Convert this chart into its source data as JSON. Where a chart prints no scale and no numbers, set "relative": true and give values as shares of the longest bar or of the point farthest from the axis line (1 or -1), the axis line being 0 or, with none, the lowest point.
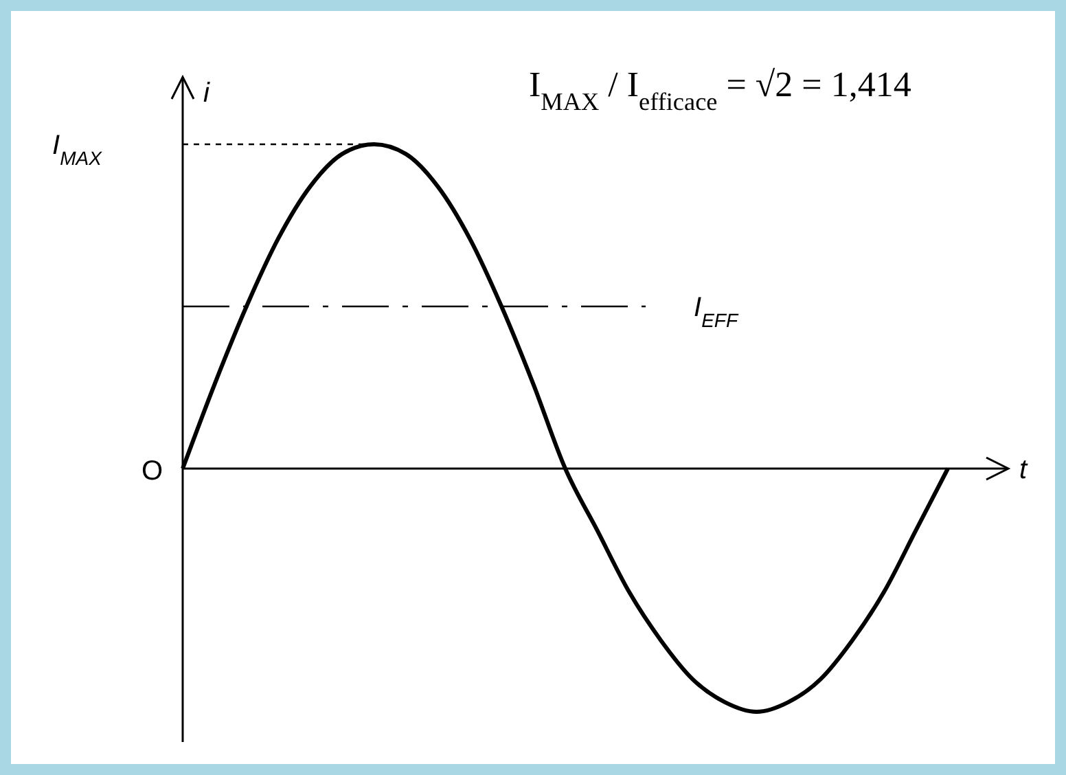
{
  "chart_data": {
    "type": "line",
    "relative": true,
    "xlabel": "t",
    "ylabel": "i",
    "categories": [
      null,
      null,
      null,
      null,
      null,
      null,
      null,
      null,
      null,
      null,
      null,
      null,
      null,
      null,
      null,
      null,
      null,
      null,
      null,
      null,
      null,
      null,
      null,
      null,
      null
    ],
    "series": [
      {
        "color": "#000000",
        "values": [
          0,
          0.26,
          0.5,
          0.71,
          0.87,
          0.97,
          1,
          0.97,
          0.87,
          0.71,
          0.5,
          0.26,
          0,
          -0.19,
          -0.38,
          -0.53,
          -0.65,
          -0.72,
          -0.75,
          -0.72,
          -0.65,
          -0.53,
          -0.38,
          -0.19,
          0
        ]
      }
    ],
    "ref_lines": [
      {
        "axis": "y",
        "value": 1,
        "label": "I$_{MAX}$",
        "line_style": "dotted"
      },
      {
        "axis": "y",
        "value": 0.5,
        "label": "I$_{EFF}$",
        "line_style": "dashed"
      }
    ],
    "annotations": [
      "O",
      "I$_{MAX}$ / I$_{efficace}$ = √2 = 1,414"
    ],
    "marker": "none",
    "line_style": "solid"
  }
}
